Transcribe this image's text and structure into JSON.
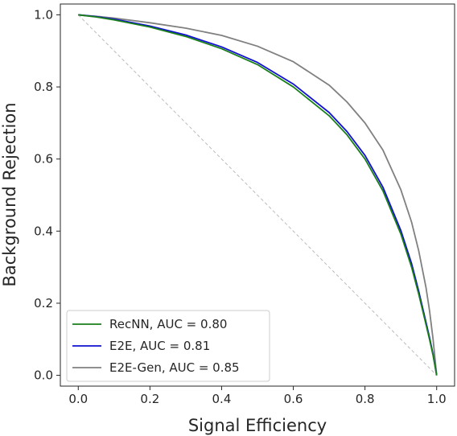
{
  "chart_data": {
    "type": "line",
    "xlabel": "Signal Efficiency",
    "ylabel": "Background Rejection",
    "xlim": [
      -0.05,
      1.05
    ],
    "ylim": [
      -0.03,
      1.03
    ],
    "xticks": [
      "0.0",
      "0.2",
      "0.4",
      "0.6",
      "0.8",
      "1.0"
    ],
    "yticks": [
      "0.0",
      "0.2",
      "0.4",
      "0.6",
      "0.8",
      "1.0"
    ],
    "grid": false,
    "legend_position": "lower-left",
    "reference_line": {
      "style": "dashed",
      "color": "#bbbbbb",
      "x": [
        0,
        1
      ],
      "y": [
        1,
        0
      ]
    },
    "series": [
      {
        "name": "RecNN, AUC = 0.80",
        "color": "#1a7f1a",
        "x": [
          0.0,
          0.05,
          0.1,
          0.2,
          0.3,
          0.4,
          0.5,
          0.6,
          0.7,
          0.75,
          0.8,
          0.85,
          0.9,
          0.93,
          0.95,
          0.97,
          0.98,
          0.99,
          1.0
        ],
        "y": [
          1.0,
          0.994,
          0.986,
          0.966,
          0.94,
          0.906,
          0.862,
          0.8,
          0.72,
          0.667,
          0.6,
          0.512,
          0.392,
          0.3,
          0.225,
          0.142,
          0.1,
          0.055,
          0.0
        ]
      },
      {
        "name": "E2E, AUC = 0.81",
        "color": "#1010d0",
        "x": [
          0.0,
          0.05,
          0.1,
          0.2,
          0.3,
          0.4,
          0.5,
          0.6,
          0.7,
          0.75,
          0.8,
          0.85,
          0.9,
          0.93,
          0.95,
          0.97,
          0.98,
          0.99,
          1.0
        ],
        "y": [
          1.0,
          0.995,
          0.988,
          0.969,
          0.944,
          0.911,
          0.868,
          0.808,
          0.729,
          0.676,
          0.61,
          0.522,
          0.402,
          0.31,
          0.233,
          0.148,
          0.105,
          0.058,
          0.0
        ]
      },
      {
        "name": "E2E-Gen, AUC = 0.85",
        "color": "#808080",
        "x": [
          0.0,
          0.05,
          0.1,
          0.2,
          0.3,
          0.4,
          0.5,
          0.6,
          0.7,
          0.75,
          0.8,
          0.85,
          0.9,
          0.93,
          0.95,
          0.97,
          0.98,
          0.99,
          1.0
        ],
        "y": [
          1.0,
          0.996,
          0.991,
          0.978,
          0.963,
          0.943,
          0.913,
          0.87,
          0.805,
          0.758,
          0.7,
          0.625,
          0.515,
          0.425,
          0.345,
          0.245,
          0.18,
          0.1,
          0.0
        ]
      }
    ]
  }
}
